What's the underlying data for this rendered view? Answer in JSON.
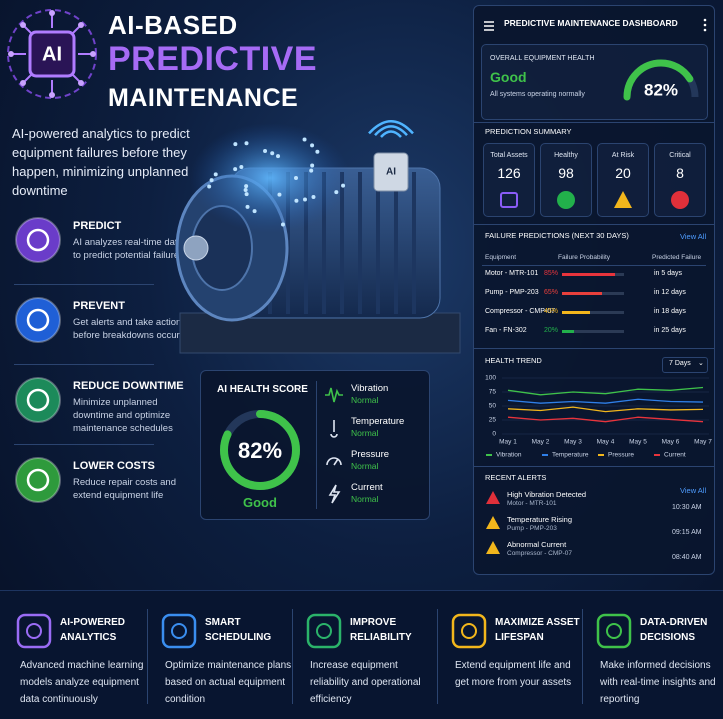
{
  "header": {
    "logo": "AI",
    "title_lines": [
      "AI-BASED",
      "PREDICTIVE",
      "MAINTENANCE"
    ]
  },
  "intro": "AI-powered analytics to predict equipment failures before they happen, minimizing unplanned downtime",
  "features": [
    {
      "title": "PREDICT",
      "text": "AI analyzes real-time data to predict potential failures",
      "color": "#6a3cc9"
    },
    {
      "title": "PREVENT",
      "text": "Get alerts and take action before breakdowns occur",
      "color": "#1f5fd6"
    },
    {
      "title": "REDUCE DOWNTIME",
      "text": "Minimize unplanned downtime and optimize maintenance schedules",
      "color": "#1c8a5a"
    },
    {
      "title": "LOWER COSTS",
      "text": "Reduce repair costs and extend equipment life",
      "color": "#2e9a3c"
    }
  ],
  "sensor_label": "AI",
  "health_card": {
    "title": "AI HEALTH SCORE",
    "score": {
      "value": 82,
      "label": "82%"
    },
    "status": "Good",
    "sensors": [
      {
        "name": "Vibration",
        "status": "Normal"
      },
      {
        "name": "Temperature",
        "status": "Normal"
      },
      {
        "name": "Pressure",
        "status": "Normal"
      },
      {
        "name": "Current",
        "status": "Normal"
      }
    ]
  },
  "dashboard": {
    "title": "PREDICTIVE MAINTENANCE DASHBOARD",
    "overall": {
      "heading": "OVERALL EQUIPMENT HEALTH",
      "status": "Good",
      "note": "All systems operating normally",
      "score": {
        "value": 82,
        "label": "82%"
      }
    },
    "summary": {
      "heading": "PREDICTION SUMMARY",
      "items": [
        {
          "label": "Total Assets",
          "value": 126,
          "color": "#8a5cf6"
        },
        {
          "label": "Healthy",
          "value": 98,
          "color": "#22b04b"
        },
        {
          "label": "At Risk",
          "value": 20,
          "color": "#f2b61c"
        },
        {
          "label": "Critical",
          "value": 8,
          "color": "#e0303a"
        }
      ]
    },
    "failures": {
      "heading": "FAILURE PREDICTIONS (NEXT 30 DAYS)",
      "link": "View All",
      "columns": [
        "Equipment",
        "Failure Probability",
        "Predicted Failure"
      ],
      "rows": [
        {
          "equipment": "Motor - MTR-101",
          "probability": {
            "value": 85,
            "label": "85%"
          },
          "prediction": "in 5 days",
          "color": "#e8343c"
        },
        {
          "equipment": "Pump - PMP-203",
          "probability": {
            "value": 65,
            "label": "65%"
          },
          "prediction": "in 12 days",
          "color": "#e8403c"
        },
        {
          "equipment": "Compressor - CMP-07",
          "probability": {
            "value": 45,
            "label": "45%"
          },
          "prediction": "in 18 days",
          "color": "#f2b61c"
        },
        {
          "equipment": "Fan - FN-302",
          "probability": {
            "value": 20,
            "label": "20%"
          },
          "prediction": "in 25 days",
          "color": "#22b04b"
        }
      ]
    },
    "trend": {
      "heading": "HEALTH TREND",
      "range": "7 Days",
      "chart_data": {
        "type": "line",
        "categories": [
          "May 1",
          "May 2",
          "May 3",
          "May 4",
          "May 5",
          "May 6",
          "May 7"
        ],
        "ylim": [
          0,
          100
        ],
        "yticks": [
          0,
          25,
          50,
          75,
          100
        ],
        "grid": true,
        "series": [
          {
            "name": "Vibration",
            "color": "#3fc24a",
            "values": [
              78,
              70,
              75,
              72,
              80,
              78,
              83
            ]
          },
          {
            "name": "Temperature",
            "color": "#2f7fe8",
            "values": [
              60,
              55,
              58,
              55,
              62,
              58,
              57
            ]
          },
          {
            "name": "Pressure",
            "color": "#f2b61c",
            "values": [
              45,
              42,
              48,
              40,
              45,
              43,
              44
            ]
          },
          {
            "name": "Current",
            "color": "#e8343c",
            "values": [
              30,
              25,
              28,
              22,
              30,
              26,
              22
            ]
          }
        ]
      }
    },
    "alerts": {
      "heading": "RECENT ALERTS",
      "link": "View All",
      "items": [
        {
          "title": "High Vibration Detected",
          "asset": "Motor - MTR-101",
          "time": "10:30 AM",
          "color": "#e0303a"
        },
        {
          "title": "Temperature Rising",
          "asset": "Pump - PMP-203",
          "time": "09:15 AM",
          "color": "#f2b61c"
        },
        {
          "title": "Abnormal Current",
          "asset": "Compressor - CMP-07",
          "time": "08:40 AM",
          "color": "#f2b61c"
        }
      ]
    }
  },
  "benefits": [
    {
      "title": "AI-POWERED ANALYTICS",
      "text": "Advanced machine learning models analyze equipment data continuously",
      "color": "#9a6cf5"
    },
    {
      "title": "SMART SCHEDULING",
      "text": "Optimize maintenance plans based on actual equipment condition",
      "color": "#3a8ef0"
    },
    {
      "title": "IMPROVE RELIABILITY",
      "text": "Increase equipment reliability and operational efficiency",
      "color": "#2bb36a"
    },
    {
      "title": "MAXIMIZE ASSET LIFESPAN",
      "text": "Extend equipment life and get more from your assets",
      "color": "#f2b61c"
    },
    {
      "title": "DATA-DRIVEN DECISIONS",
      "text": "Make informed decisions with real-time insights and reporting",
      "color": "#3fc24a"
    }
  ]
}
